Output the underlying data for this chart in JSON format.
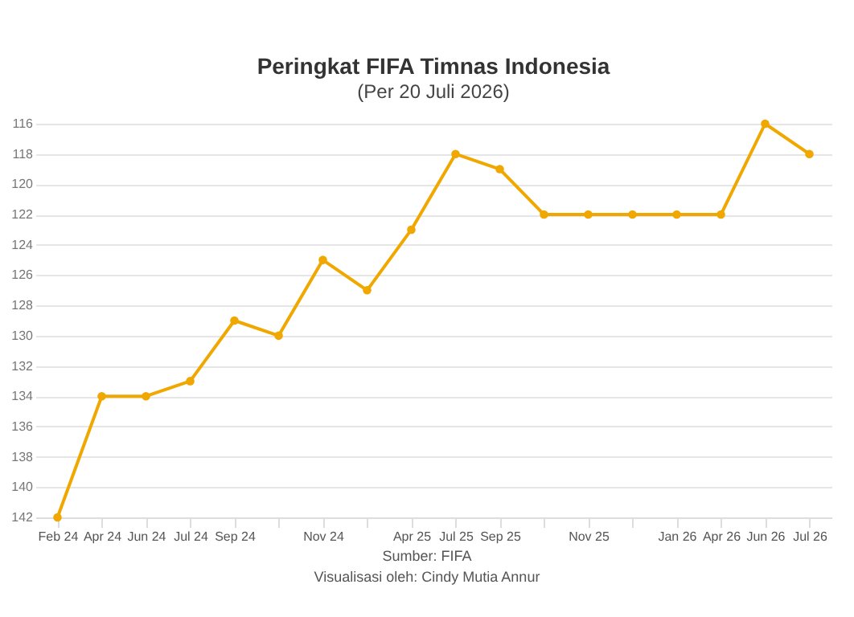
{
  "chart_data": {
    "type": "line",
    "title": "Peringkat FIFA Timnas Indonesia",
    "subtitle": "(Per 20 Juli 2026)",
    "categories": [
      "Feb 24",
      "Apr 24",
      "Jun 24",
      "Jul 24",
      "Sep 24",
      null,
      "Nov 24",
      null,
      "Apr 25",
      "Jul 25",
      "Sep 25",
      null,
      "Nov 25",
      null,
      "Jan 26",
      "Apr 26",
      "Jun 26",
      "Jul 26"
    ],
    "series": [
      {
        "color": "#f0a800",
        "values": [
          142,
          134,
          134,
          133,
          129,
          130,
          125,
          127,
          123,
          118,
          119,
          122,
          122,
          122,
          122,
          122,
          116,
          118
        ]
      }
    ],
    "ylim": [
      142,
      116
    ],
    "yticks": [
      116,
      118,
      120,
      122,
      124,
      126,
      128,
      130,
      132,
      134,
      136,
      138,
      140,
      142
    ],
    "grid": "y",
    "marker": "circle",
    "line_style": "solid",
    "annotations": [
      "Sumber: FIFA",
      "Visualisasi oleh: Cindy Mutia Annur"
    ]
  }
}
